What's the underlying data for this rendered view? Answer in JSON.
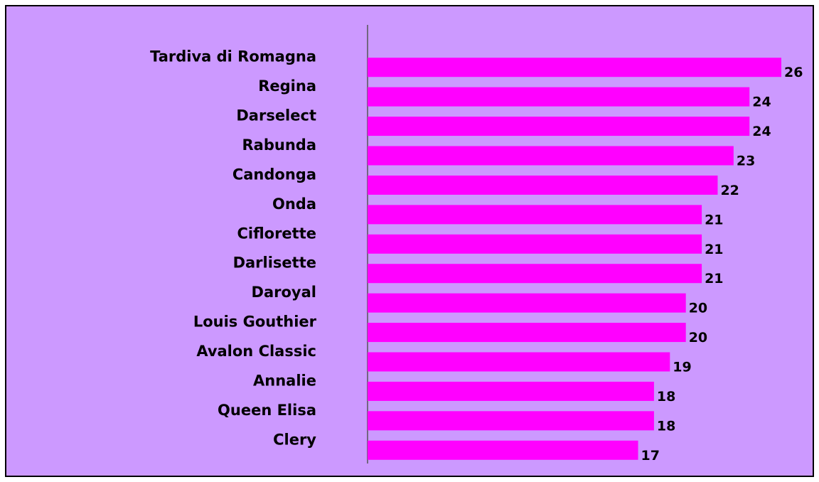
{
  "chart_data": {
    "type": "bar",
    "orientation": "horizontal",
    "categories": [
      "Tardiva di Romagna",
      "Regina",
      "Darselect",
      "Rabunda",
      "Candonga",
      "Onda",
      "Ciflorette",
      "Darlisette",
      "Daroyal",
      "Louis Gouthier",
      "Avalon Classic",
      "Annalie",
      "Queen Elisa",
      "Clery"
    ],
    "values": [
      26,
      24,
      24,
      23,
      22,
      21,
      21,
      21,
      20,
      20,
      19,
      18,
      18,
      17
    ],
    "color": "#ff00ff",
    "background": "#cc99ff",
    "xlim": [
      0,
      26
    ]
  }
}
